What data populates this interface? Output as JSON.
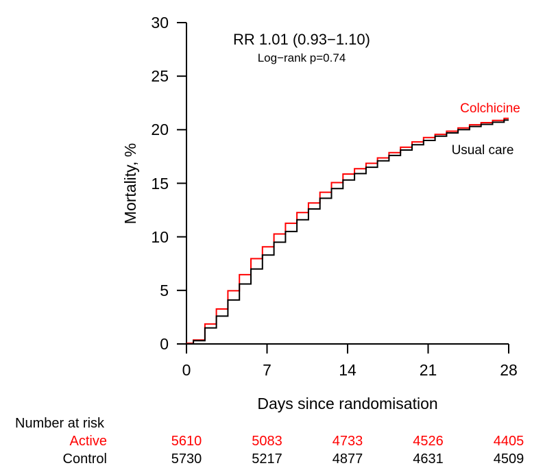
{
  "chart_data": {
    "type": "line",
    "subtype": "kaplan-meier-step-curve",
    "title": "",
    "annotations": [
      "RR 1.01 (0.93−1.10)",
      "Log−rank p=0.74"
    ],
    "xlabel": "Days since randomisation",
    "ylabel": "Mortality, %",
    "xlim": [
      0,
      28
    ],
    "ylim": [
      0,
      30
    ],
    "xticks": [
      0,
      7,
      14,
      21,
      28
    ],
    "yticks": [
      0,
      5,
      10,
      15,
      20,
      25,
      30
    ],
    "grid": false,
    "legend_position": "inline-labels",
    "x_days": [
      0,
      1,
      2,
      3,
      4,
      5,
      6,
      7,
      8,
      9,
      10,
      11,
      12,
      13,
      14,
      15,
      16,
      17,
      18,
      19,
      20,
      21,
      22,
      23,
      24,
      25,
      26,
      27,
      28
    ],
    "series": [
      {
        "name": "Colchicine",
        "color": "#FF0000",
        "values": [
          0,
          0.3,
          1.8,
          3.2,
          4.9,
          6.4,
          7.9,
          9.0,
          10.2,
          11.2,
          12.2,
          13.1,
          14.1,
          15.0,
          15.8,
          16.3,
          16.8,
          17.3,
          17.8,
          18.3,
          18.8,
          19.2,
          19.5,
          19.8,
          20.1,
          20.4,
          20.6,
          20.8,
          21.0
        ]
      },
      {
        "name": "Usual care",
        "color": "#000000",
        "values": [
          0,
          0.3,
          1.5,
          2.6,
          4.1,
          5.6,
          7.0,
          8.3,
          9.5,
          10.5,
          11.6,
          12.6,
          13.6,
          14.5,
          15.3,
          15.9,
          16.5,
          17.1,
          17.6,
          18.1,
          18.6,
          19.0,
          19.4,
          19.7,
          20.0,
          20.3,
          20.5,
          20.7,
          20.9
        ]
      }
    ],
    "number_at_risk": {
      "header": "Number at risk",
      "days": [
        0,
        7,
        14,
        21,
        28
      ],
      "rows": [
        {
          "label": "Active",
          "color": "#FF0000",
          "counts": [
            "5610",
            "5083",
            "4733",
            "4526",
            "4405"
          ]
        },
        {
          "label": "Control",
          "color": "#000000",
          "counts": [
            "5730",
            "5217",
            "4877",
            "4631",
            "4509"
          ]
        }
      ]
    },
    "colors": {
      "axis": "#000000",
      "background": "#FFFFFF"
    }
  }
}
